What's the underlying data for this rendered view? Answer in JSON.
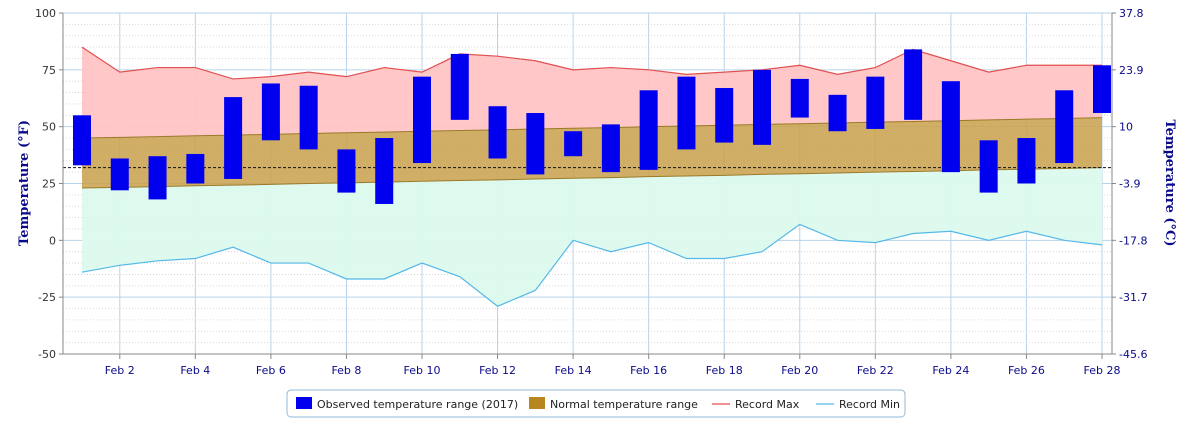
{
  "chart_data": {
    "type": "range-bar-area",
    "y_left": {
      "label": "Temperature (°F)",
      "min": -50,
      "max": 100,
      "ticks": [
        100,
        75,
        50,
        25,
        0,
        -25,
        -50
      ]
    },
    "y_right": {
      "label": "Temperature (°C)",
      "ticks": [
        "37.8",
        "23.9",
        "10",
        "-3.9",
        "-17.8",
        "-31.7",
        "-45.6"
      ]
    },
    "x": {
      "day_min": 1,
      "day_max": 28,
      "tick_days": [
        2,
        4,
        6,
        8,
        10,
        12,
        14,
        16,
        18,
        20,
        22,
        24,
        26,
        28
      ],
      "tick_labels": [
        "Feb 2",
        "Feb 4",
        "Feb 6",
        "Feb 8",
        "Feb 10",
        "Feb 12",
        "Feb 14",
        "Feb 16",
        "Feb 18",
        "Feb 20",
        "Feb 22",
        "Feb 24",
        "Feb 26",
        "Feb 28"
      ]
    },
    "freezing_line_f": 32,
    "days": [
      1,
      2,
      3,
      4,
      5,
      6,
      7,
      8,
      9,
      10,
      11,
      12,
      13,
      14,
      15,
      16,
      17,
      18,
      19,
      20,
      21,
      22,
      23,
      24,
      25,
      26,
      27,
      28
    ],
    "observed_low": [
      33,
      22,
      18,
      25,
      27,
      44,
      40,
      21,
      16,
      34,
      53,
      36,
      29,
      37,
      30,
      31,
      40,
      43,
      42,
      54,
      48,
      49,
      53,
      30,
      21,
      25,
      34,
      56
    ],
    "observed_high": [
      55,
      36,
      37,
      38,
      63,
      69,
      68,
      40,
      45,
      72,
      82,
      59,
      56,
      48,
      51,
      66,
      72,
      67,
      75,
      71,
      64,
      72,
      84,
      70,
      44,
      45,
      66,
      77
    ],
    "normal_low": [
      23,
      23.3,
      23.6,
      24,
      24.3,
      24.6,
      25,
      25.3,
      25.6,
      26,
      26.3,
      26.6,
      27,
      27.3,
      27.6,
      28,
      28.3,
      28.6,
      29,
      29.3,
      29.6,
      30,
      30.3,
      30.6,
      31,
      31.3,
      31.6,
      32
    ],
    "normal_high": [
      45,
      45.3,
      45.6,
      46,
      46.3,
      46.6,
      47,
      47.3,
      47.6,
      48,
      48.3,
      48.6,
      49,
      49.3,
      49.6,
      50,
      50.3,
      50.6,
      51,
      51.3,
      51.6,
      52,
      52.3,
      52.6,
      53,
      53.3,
      53.6,
      54
    ],
    "record_max": [
      85,
      74,
      76,
      76,
      71,
      72,
      74,
      72,
      76,
      74,
      82,
      81,
      79,
      75,
      76,
      75,
      73,
      74,
      75,
      77,
      73,
      76,
      84,
      79,
      74,
      77,
      77,
      77
    ],
    "record_min": [
      -14,
      -11,
      -9,
      -8,
      -3,
      -10,
      -10,
      -17,
      -17,
      -10,
      -16,
      -29,
      -22,
      0,
      -5,
      -1,
      -8,
      -8,
      -5,
      7,
      0,
      -1,
      3,
      4,
      0,
      4,
      0,
      -2
    ],
    "colors": {
      "observed": "#0000ee",
      "normal": "#c9a04a",
      "record_max_line": "#e05050",
      "record_max_fill": "#ffc4c4",
      "record_min_line": "#55b8e8",
      "record_min_fill": "#dcfaee"
    },
    "legend": [
      {
        "key": "observed",
        "label": "Observed temperature range (2017)"
      },
      {
        "key": "normal",
        "label": "Normal temperature range"
      },
      {
        "key": "record_max",
        "label": "Record Max"
      },
      {
        "key": "record_min",
        "label": "Record Min"
      }
    ]
  }
}
